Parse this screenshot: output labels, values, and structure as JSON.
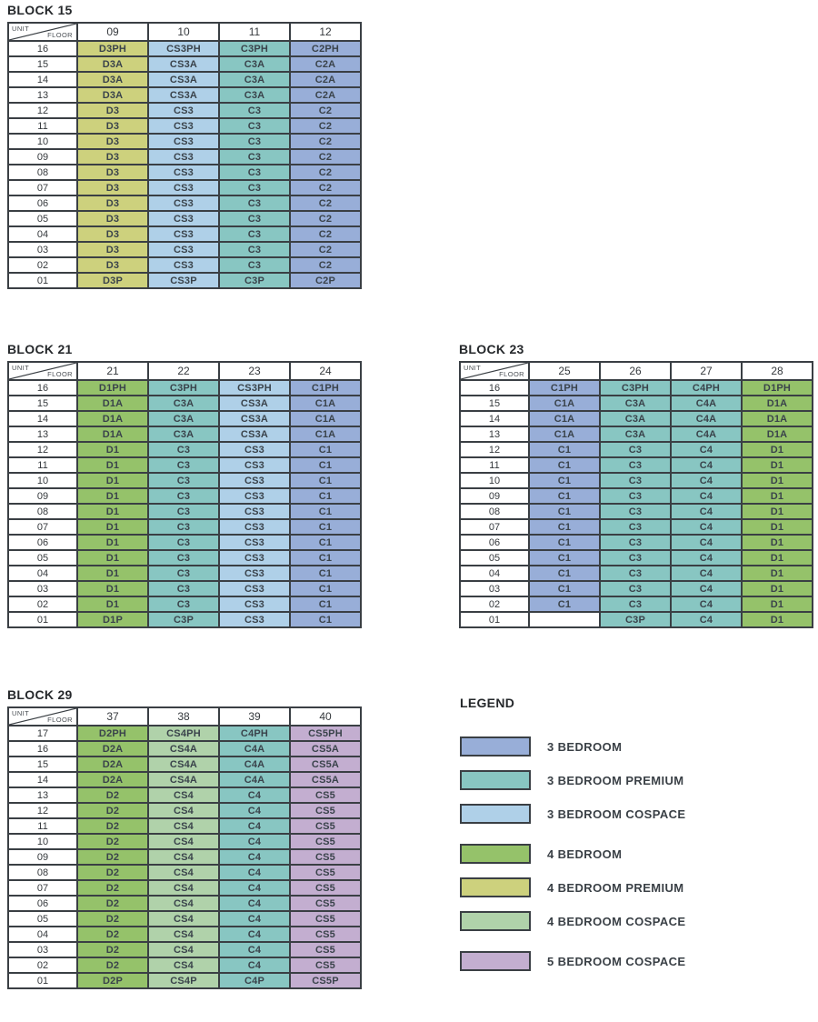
{
  "header_cell": {
    "top_label": "UNIT",
    "bottom_label": "FLOOR"
  },
  "colors": {
    "three": "#98aed8",
    "three_premium": "#88c6c2",
    "three_cospace": "#afd0e8",
    "four": "#95c26a",
    "four_premium": "#cdd17d",
    "four_cospace": "#b0d2aa",
    "five_cospace": "#c3aed0",
    "border": "#3a3f44",
    "empty_cell": "#ffffff"
  },
  "blocks": [
    {
      "title": "BLOCK 15",
      "columns": [
        "09",
        "10",
        "11",
        "12"
      ],
      "column_categories": [
        "four_premium",
        "three_cospace",
        "three_premium",
        "three"
      ],
      "floors": [
        "16",
        "15",
        "14",
        "13",
        "12",
        "11",
        "10",
        "09",
        "08",
        "07",
        "06",
        "05",
        "04",
        "03",
        "02",
        "01"
      ],
      "rows": [
        [
          "D3PH",
          "CS3PH",
          "C3PH",
          "C2PH"
        ],
        [
          "D3A",
          "CS3A",
          "C3A",
          "C2A"
        ],
        [
          "D3A",
          "CS3A",
          "C3A",
          "C2A"
        ],
        [
          "D3A",
          "CS3A",
          "C3A",
          "C2A"
        ],
        [
          "D3",
          "CS3",
          "C3",
          "C2"
        ],
        [
          "D3",
          "CS3",
          "C3",
          "C2"
        ],
        [
          "D3",
          "CS3",
          "C3",
          "C2"
        ],
        [
          "D3",
          "CS3",
          "C3",
          "C2"
        ],
        [
          "D3",
          "CS3",
          "C3",
          "C2"
        ],
        [
          "D3",
          "CS3",
          "C3",
          "C2"
        ],
        [
          "D3",
          "CS3",
          "C3",
          "C2"
        ],
        [
          "D3",
          "CS3",
          "C3",
          "C2"
        ],
        [
          "D3",
          "CS3",
          "C3",
          "C2"
        ],
        [
          "D3",
          "CS3",
          "C3",
          "C2"
        ],
        [
          "D3",
          "CS3",
          "C3",
          "C2"
        ],
        [
          "D3P",
          "CS3P",
          "C3P",
          "C2P"
        ]
      ]
    },
    {
      "title": "BLOCK 21",
      "columns": [
        "21",
        "22",
        "23",
        "24"
      ],
      "column_categories": [
        "four",
        "three_premium",
        "three_cospace",
        "three"
      ],
      "floors": [
        "16",
        "15",
        "14",
        "13",
        "12",
        "11",
        "10",
        "09",
        "08",
        "07",
        "06",
        "05",
        "04",
        "03",
        "02",
        "01"
      ],
      "rows": [
        [
          "D1PH",
          "C3PH",
          "CS3PH",
          "C1PH"
        ],
        [
          "D1A",
          "C3A",
          "CS3A",
          "C1A"
        ],
        [
          "D1A",
          "C3A",
          "CS3A",
          "C1A"
        ],
        [
          "D1A",
          "C3A",
          "CS3A",
          "C1A"
        ],
        [
          "D1",
          "C3",
          "CS3",
          "C1"
        ],
        [
          "D1",
          "C3",
          "CS3",
          "C1"
        ],
        [
          "D1",
          "C3",
          "CS3",
          "C1"
        ],
        [
          "D1",
          "C3",
          "CS3",
          "C1"
        ],
        [
          "D1",
          "C3",
          "CS3",
          "C1"
        ],
        [
          "D1",
          "C3",
          "CS3",
          "C1"
        ],
        [
          "D1",
          "C3",
          "CS3",
          "C1"
        ],
        [
          "D1",
          "C3",
          "CS3",
          "C1"
        ],
        [
          "D1",
          "C3",
          "CS3",
          "C1"
        ],
        [
          "D1",
          "C3",
          "CS3",
          "C1"
        ],
        [
          "D1",
          "C3",
          "CS3",
          "C1"
        ],
        [
          "D1P",
          "C3P",
          "CS3",
          "C1"
        ]
      ]
    },
    {
      "title": "BLOCK 23",
      "columns": [
        "25",
        "26",
        "27",
        "28"
      ],
      "column_categories": [
        "three",
        "three_premium",
        "three_premium",
        "four"
      ],
      "floors": [
        "16",
        "15",
        "14",
        "13",
        "12",
        "11",
        "10",
        "09",
        "08",
        "07",
        "06",
        "05",
        "04",
        "03",
        "02",
        "01"
      ],
      "rows": [
        [
          "C1PH",
          "C3PH",
          "C4PH",
          "D1PH"
        ],
        [
          "C1A",
          "C3A",
          "C4A",
          "D1A"
        ],
        [
          "C1A",
          "C3A",
          "C4A",
          "D1A"
        ],
        [
          "C1A",
          "C3A",
          "C4A",
          "D1A"
        ],
        [
          "C1",
          "C3",
          "C4",
          "D1"
        ],
        [
          "C1",
          "C3",
          "C4",
          "D1"
        ],
        [
          "C1",
          "C3",
          "C4",
          "D1"
        ],
        [
          "C1",
          "C3",
          "C4",
          "D1"
        ],
        [
          "C1",
          "C3",
          "C4",
          "D1"
        ],
        [
          "C1",
          "C3",
          "C4",
          "D1"
        ],
        [
          "C1",
          "C3",
          "C4",
          "D1"
        ],
        [
          "C1",
          "C3",
          "C4",
          "D1"
        ],
        [
          "C1",
          "C3",
          "C4",
          "D1"
        ],
        [
          "C1",
          "C3",
          "C4",
          "D1"
        ],
        [
          "C1",
          "C3",
          "C4",
          "D1"
        ],
        [
          "",
          "C3P",
          "C4",
          "D1"
        ]
      ]
    },
    {
      "title": "BLOCK 29",
      "columns": [
        "37",
        "38",
        "39",
        "40"
      ],
      "column_categories": [
        "four",
        "four_cospace",
        "three_premium",
        "five_cospace"
      ],
      "floors": [
        "17",
        "16",
        "15",
        "14",
        "13",
        "12",
        "11",
        "10",
        "09",
        "08",
        "07",
        "06",
        "05",
        "04",
        "03",
        "02",
        "01"
      ],
      "rows": [
        [
          "D2PH",
          "CS4PH",
          "C4PH",
          "CS5PH"
        ],
        [
          "D2A",
          "CS4A",
          "C4A",
          "CS5A"
        ],
        [
          "D2A",
          "CS4A",
          "C4A",
          "CS5A"
        ],
        [
          "D2A",
          "CS4A",
          "C4A",
          "CS5A"
        ],
        [
          "D2",
          "CS4",
          "C4",
          "CS5"
        ],
        [
          "D2",
          "CS4",
          "C4",
          "CS5"
        ],
        [
          "D2",
          "CS4",
          "C4",
          "CS5"
        ],
        [
          "D2",
          "CS4",
          "C4",
          "CS5"
        ],
        [
          "D2",
          "CS4",
          "C4",
          "CS5"
        ],
        [
          "D2",
          "CS4",
          "C4",
          "CS5"
        ],
        [
          "D2",
          "CS4",
          "C4",
          "CS5"
        ],
        [
          "D2",
          "CS4",
          "C4",
          "CS5"
        ],
        [
          "D2",
          "CS4",
          "C4",
          "CS5"
        ],
        [
          "D2",
          "CS4",
          "C4",
          "CS5"
        ],
        [
          "D2",
          "CS4",
          "C4",
          "CS5"
        ],
        [
          "D2",
          "CS4",
          "C4",
          "CS5"
        ],
        [
          "D2P",
          "CS4P",
          "C4P",
          "CS5P"
        ]
      ]
    }
  ],
  "legend": {
    "title": "LEGEND",
    "groups": [
      [
        {
          "key": "three",
          "label": "3 BEDROOM"
        },
        {
          "key": "three_premium",
          "label": "3 BEDROOM PREMIUM"
        },
        {
          "key": "three_cospace",
          "label": "3 BEDROOM COSPACE"
        }
      ],
      [
        {
          "key": "four",
          "label": "4 BEDROOM"
        },
        {
          "key": "four_premium",
          "label": "4 BEDROOM PREMIUM"
        },
        {
          "key": "four_cospace",
          "label": "4 BEDROOM COSPACE"
        }
      ],
      [
        {
          "key": "five_cospace",
          "label": "5 BEDROOM COSPACE"
        }
      ]
    ]
  }
}
